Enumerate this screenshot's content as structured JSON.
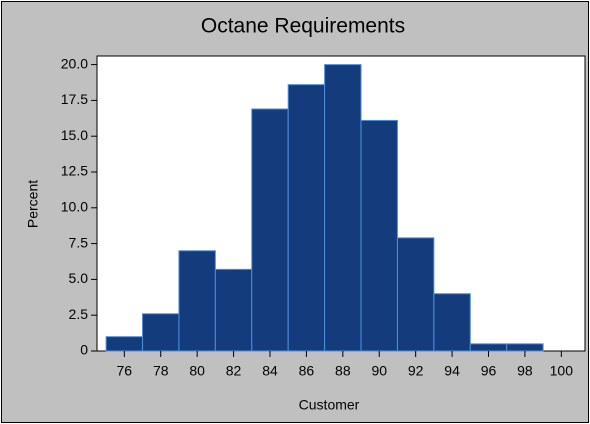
{
  "chart_data": {
    "type": "histogram",
    "title": "Octane Requirements",
    "xlabel": "Customer",
    "ylabel": "Percent",
    "bins": [
      75,
      77,
      79,
      81,
      83,
      85,
      87,
      89,
      91,
      93,
      95,
      97,
      99
    ],
    "values": [
      1.0,
      2.6,
      7.0,
      5.7,
      16.9,
      18.6,
      20.0,
      16.1,
      7.9,
      4.0,
      0.5,
      0.5
    ],
    "color": "#143c7d",
    "edgecolor": "#4f8fd8",
    "xlim": [
      74.5,
      101.3
    ],
    "xticks": [
      76,
      78,
      80,
      82,
      84,
      86,
      88,
      90,
      92,
      94,
      96,
      98,
      100
    ],
    "ylim": [
      0,
      20.6
    ],
    "yticks": [
      0,
      2.5,
      {
        "value": 5,
        "label": "5.0"
      },
      7.5,
      {
        "value": 10,
        "label": "10.0"
      },
      12.5,
      {
        "value": 15,
        "label": "15.0"
      },
      17.5,
      {
        "value": 20,
        "label": "20.0"
      }
    ]
  }
}
